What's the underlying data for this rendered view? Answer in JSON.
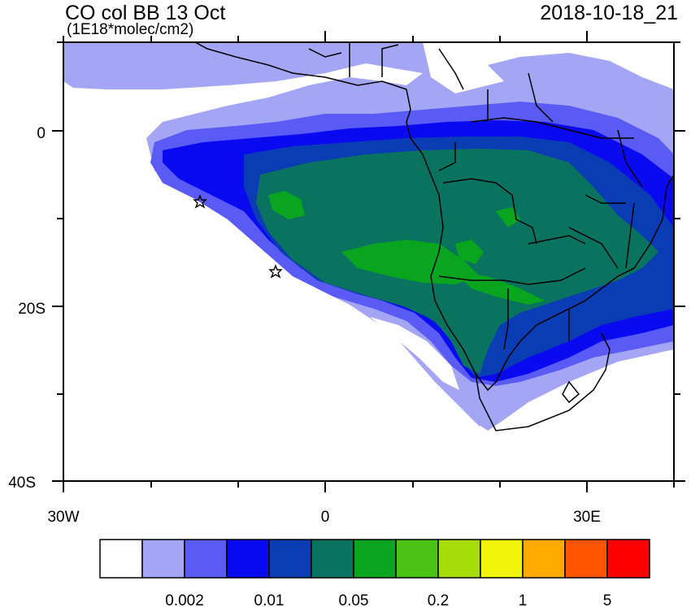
{
  "map": {
    "title": "CO col BB 13 Oct",
    "units": "(1E18*molec/cm2)",
    "datetime": "2018-10-18_21",
    "y_tick_labels": [
      "0",
      "20S",
      "40S"
    ],
    "x_tick_labels": [
      "30W",
      "0",
      "30E"
    ],
    "region": "Southern Africa and South Atlantic",
    "markers": "star-markers"
  },
  "colorbar": {
    "colors": [
      "#ffffff",
      "#a5a5f5",
      "#5a5af5",
      "#0a0af0",
      "#0a3cb4",
      "#0a735f",
      "#0aa51e",
      "#4bc314",
      "#a5dc0a",
      "#f0f50a",
      "#ffaa00",
      "#ff5500",
      "#ff0000"
    ],
    "labels": [
      "0.002",
      "0.01",
      "0.05",
      "0.2",
      "1",
      "5"
    ]
  }
}
